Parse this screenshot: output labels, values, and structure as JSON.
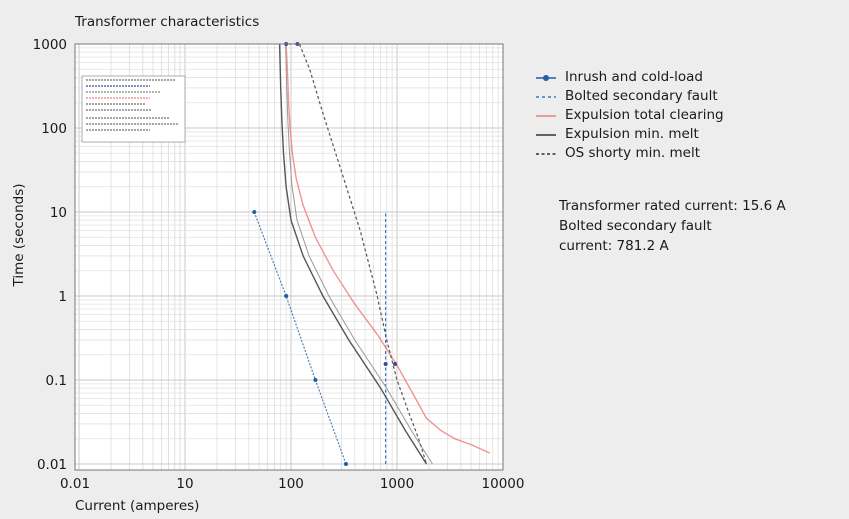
{
  "chart_data": {
    "type": "line",
    "title": "Transformer characteristics",
    "xlabel": "Current (amperes)",
    "ylabel": "Time (seconds)",
    "xscale": "log",
    "yscale": "log",
    "xlim": [
      0.01,
      10000
    ],
    "ylim": [
      0.01,
      1000
    ],
    "xticks": [
      {
        "value": 0.01,
        "label": "0.01"
      },
      {
        "value": 10,
        "label": "10"
      },
      {
        "value": 100,
        "label": "100"
      },
      {
        "value": 1000,
        "label": "1000"
      },
      {
        "value": 10000,
        "label": "10000"
      }
    ],
    "yticks": [
      {
        "value": 1000,
        "label": "1000"
      },
      {
        "value": 100,
        "label": "100"
      },
      {
        "value": 10,
        "label": "10"
      },
      {
        "value": 1,
        "label": "1"
      },
      {
        "value": 0.1,
        "label": "0.1"
      },
      {
        "value": 0.01,
        "label": "0.01"
      }
    ],
    "grid": true,
    "legend_position": "right",
    "series": [
      {
        "name": "Inrush and cold-load",
        "color": "#1f5fa8",
        "style": "solid-dots",
        "x": [
          45,
          90,
          170,
          330
        ],
        "y": [
          10,
          1,
          0.1,
          0.01
        ]
      },
      {
        "name": "Bolted secondary fault",
        "color": "#3a78c8",
        "style": "dashed",
        "x": [
          781.2,
          781.2
        ],
        "y": [
          0.01,
          10
        ]
      },
      {
        "name": "Expulsion total clearing",
        "color": "#f08080",
        "style": "solid",
        "x": [
          90,
          93,
          95,
          98,
          103,
          112,
          130,
          170,
          250,
          400,
          650,
          1000,
          1400,
          1900,
          2600,
          3500,
          5000,
          7500
        ],
        "y": [
          1000,
          400,
          200,
          100,
          50,
          25,
          12,
          5,
          2,
          0.8,
          0.35,
          0.15,
          0.07,
          0.035,
          0.025,
          0.02,
          0.017,
          0.0135
        ]
      },
      {
        "name": "Expulsion min. melt",
        "color": "#555555",
        "style": "solid",
        "x": [
          78,
          80,
          82,
          85,
          90,
          100,
          130,
          200,
          350,
          700,
          1200,
          1900
        ],
        "y": [
          1000,
          300,
          120,
          50,
          20,
          8,
          3,
          1,
          0.3,
          0.08,
          0.025,
          0.01
        ]
      },
      {
        "name": "OS shorty min. melt",
        "color": "#555555",
        "style": "dashed",
        "x": [
          95,
          120,
          150,
          200,
          300,
          450,
          650,
          800,
          1000,
          1300,
          1600,
          1900
        ],
        "y": [
          1000,
          1000,
          500,
          150,
          30,
          6,
          1,
          0.3,
          0.1,
          0.04,
          0.02,
          0.01
        ]
      }
    ],
    "markers": [
      {
        "series": "Expulsion min. melt",
        "x": 90,
        "y": 1000
      },
      {
        "series": "OS shorty min. melt",
        "x": 115,
        "y": 1000
      },
      {
        "series": "Bolted secondary fault",
        "x": 781.2,
        "y": 0.155
      },
      {
        "series": "OS shorty min. melt",
        "x": 960,
        "y": 0.155
      }
    ],
    "annotation_lines": [
      "Transformer rated current: 15.6 A",
      "Bolted secondary fault",
      "current: 781.2 A"
    ]
  },
  "colors": {
    "background": "#ededed",
    "plot_background": "#ffffff",
    "grid_major": "#c8c8c8",
    "grid_minor": "#e0e0e0",
    "inrush": "#1f5fa8",
    "bolted": "#3a78c8",
    "expulsion_total": "#f08080",
    "expulsion_melt": "#555555",
    "os_shorty": "#555555"
  }
}
